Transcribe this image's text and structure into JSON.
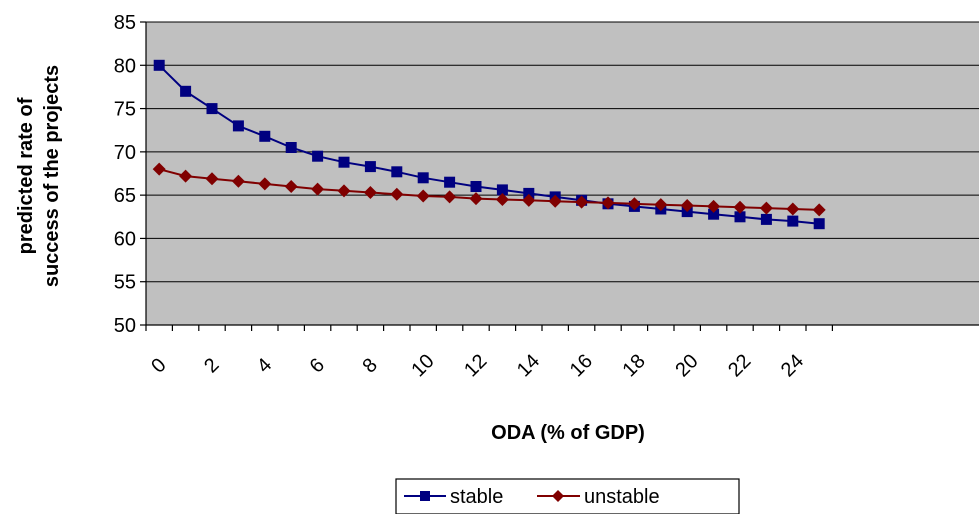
{
  "chart_data": {
    "type": "line",
    "title": "",
    "xlabel": "ODA (% of GDP)",
    "ylabel_lines": [
      "predicted rate of",
      "success of the projects"
    ],
    "x": [
      0,
      1,
      2,
      3,
      4,
      5,
      6,
      7,
      8,
      9,
      10,
      11,
      12,
      13,
      14,
      15,
      16,
      17,
      18,
      19,
      20,
      21,
      22,
      23,
      24,
      25
    ],
    "x_tick_labels": [
      "0",
      "2",
      "4",
      "6",
      "8",
      "10",
      "12",
      "14",
      "16",
      "18",
      "20",
      "22",
      "24"
    ],
    "y_tick_labels": [
      "50",
      "55",
      "60",
      "65",
      "70",
      "75",
      "80",
      "85"
    ],
    "ylim": [
      50,
      85
    ],
    "ystep": 5,
    "grid": "horizontal",
    "plot_background": "#C0C0C0",
    "legend_position": "bottom",
    "series": [
      {
        "name": "stable",
        "color": "#000080",
        "marker": "square",
        "values": [
          80.0,
          77.0,
          75.0,
          73.0,
          71.8,
          70.5,
          69.5,
          68.8,
          68.3,
          67.7,
          67.0,
          66.5,
          66.0,
          65.6,
          65.2,
          64.8,
          64.4,
          64.0,
          63.7,
          63.4,
          63.1,
          62.8,
          62.5,
          62.2,
          62.0,
          61.7
        ]
      },
      {
        "name": "unstable",
        "color": "#800000",
        "marker": "diamond",
        "values": [
          68.0,
          67.2,
          66.9,
          66.6,
          66.3,
          66.0,
          65.7,
          65.5,
          65.3,
          65.1,
          64.9,
          64.8,
          64.6,
          64.5,
          64.4,
          64.3,
          64.2,
          64.1,
          64.0,
          63.9,
          63.8,
          63.7,
          63.6,
          63.5,
          63.4,
          63.3
        ]
      }
    ]
  }
}
